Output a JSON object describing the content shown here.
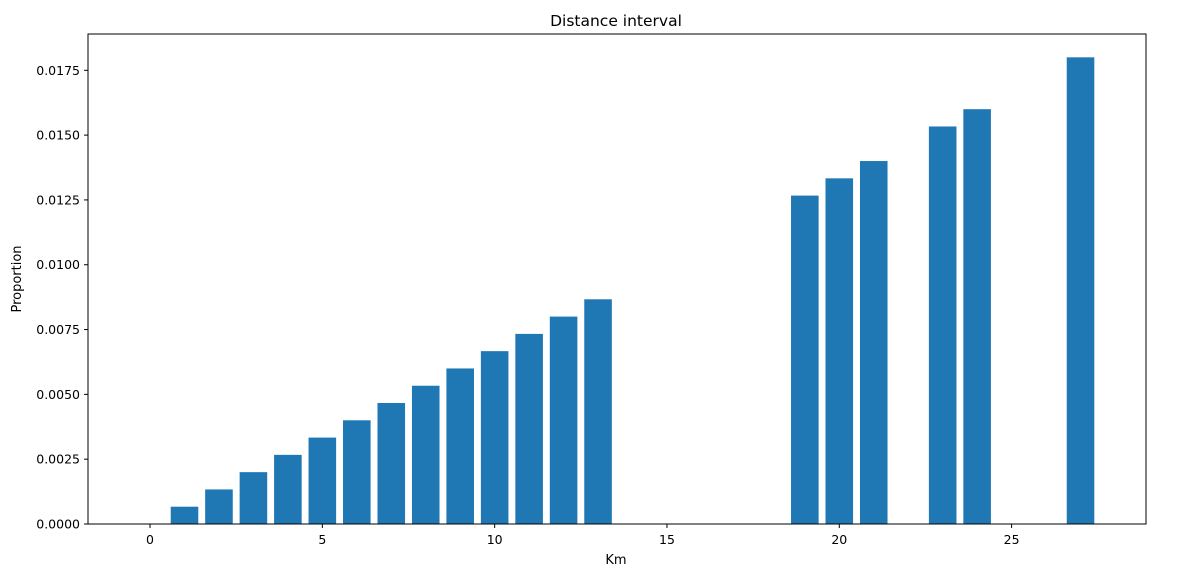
{
  "chart_data": {
    "type": "bar",
    "title": "Distance interval",
    "xlabel": "Km",
    "ylabel": "Proportion",
    "x": [
      1,
      2,
      3,
      4,
      5,
      6,
      7,
      8,
      9,
      10,
      11,
      12,
      13,
      19,
      20,
      21,
      23,
      24,
      27
    ],
    "values": [
      0.000667,
      0.001333,
      0.002,
      0.002667,
      0.003333,
      0.004,
      0.004667,
      0.005333,
      0.006,
      0.006667,
      0.007333,
      0.008,
      0.008667,
      0.012667,
      0.013333,
      0.014,
      0.015333,
      0.016,
      0.018
    ],
    "xlim": [
      -1.8,
      28.9
    ],
    "ylim": [
      0,
      0.0189
    ],
    "xticks": [
      0,
      5,
      10,
      15,
      20,
      25
    ],
    "xtick_labels": [
      "0",
      "5",
      "10",
      "15",
      "20",
      "25"
    ],
    "yticks": [
      0,
      0.0025,
      0.005,
      0.0075,
      0.01,
      0.0125,
      0.015,
      0.0175
    ],
    "ytick_labels": [
      "0.0000",
      "0.0025",
      "0.0050",
      "0.0075",
      "0.0100",
      "0.0125",
      "0.0150",
      "0.0175"
    ],
    "bar_color": "#1f77b4",
    "grid": false
  }
}
